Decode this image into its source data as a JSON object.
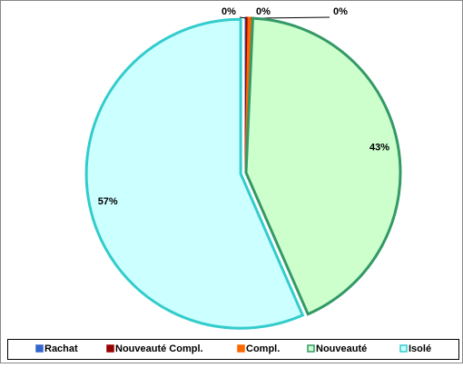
{
  "chart_data": {
    "type": "pie",
    "categories": [
      "Rachat",
      "Nouveauté Compl.",
      "Compl.",
      "Nouveauté",
      "Isolé"
    ],
    "values": [
      0.1,
      0.2,
      0.4,
      42.9,
      56.8
    ],
    "value_labels": [
      "0%",
      "0%",
      "0%",
      "43%",
      "57%"
    ],
    "colors": [
      "#3366cc",
      "#990000",
      "#ff6600",
      "#339966",
      "#33cccc"
    ],
    "fills": [
      "#3366cc",
      "#990000",
      "#ff6600",
      "#ccffcc",
      "#ccffff"
    ],
    "legend": "bottom"
  }
}
